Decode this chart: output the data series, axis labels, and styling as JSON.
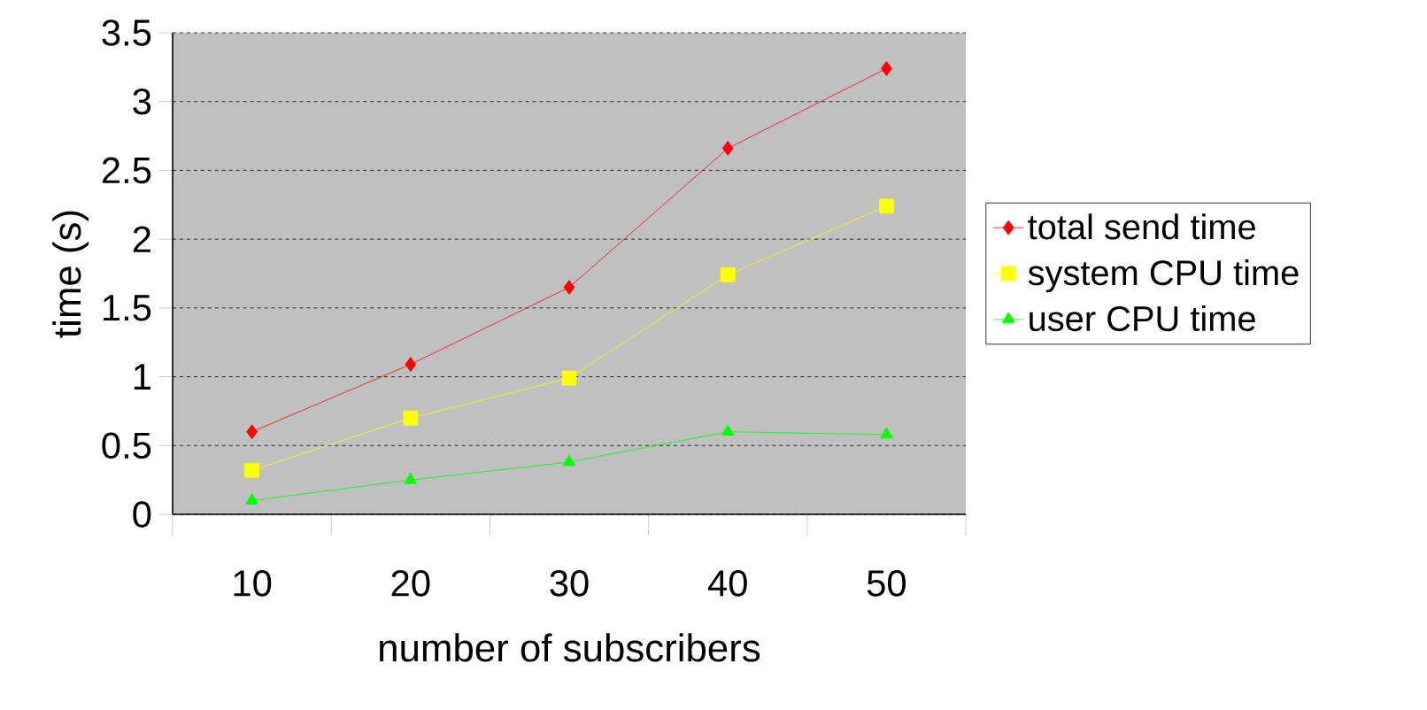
{
  "chart_data": {
    "type": "line",
    "xlabel": "number of subscribers",
    "ylabel": "time (s)",
    "categories": [
      "10",
      "20",
      "30",
      "40",
      "50"
    ],
    "series": [
      {
        "name": "total send time",
        "color": "#ff0000",
        "marker": "diamond",
        "values": [
          0.6,
          1.09,
          1.65,
          2.66,
          3.24
        ]
      },
      {
        "name": "system CPU time",
        "color": "#ffff00",
        "marker": "square",
        "values": [
          0.32,
          0.7,
          0.99,
          1.74,
          2.24
        ]
      },
      {
        "name": "user CPU time",
        "color": "#00ff00",
        "marker": "triangle",
        "values": [
          0.1,
          0.25,
          0.38,
          0.6,
          0.58
        ]
      }
    ],
    "ylim": [
      0,
      3.5
    ],
    "yticks": [
      0,
      0.5,
      1,
      1.5,
      2,
      2.5,
      3,
      3.5
    ],
    "grid": "y",
    "legend": "right",
    "line_style": "solid"
  }
}
